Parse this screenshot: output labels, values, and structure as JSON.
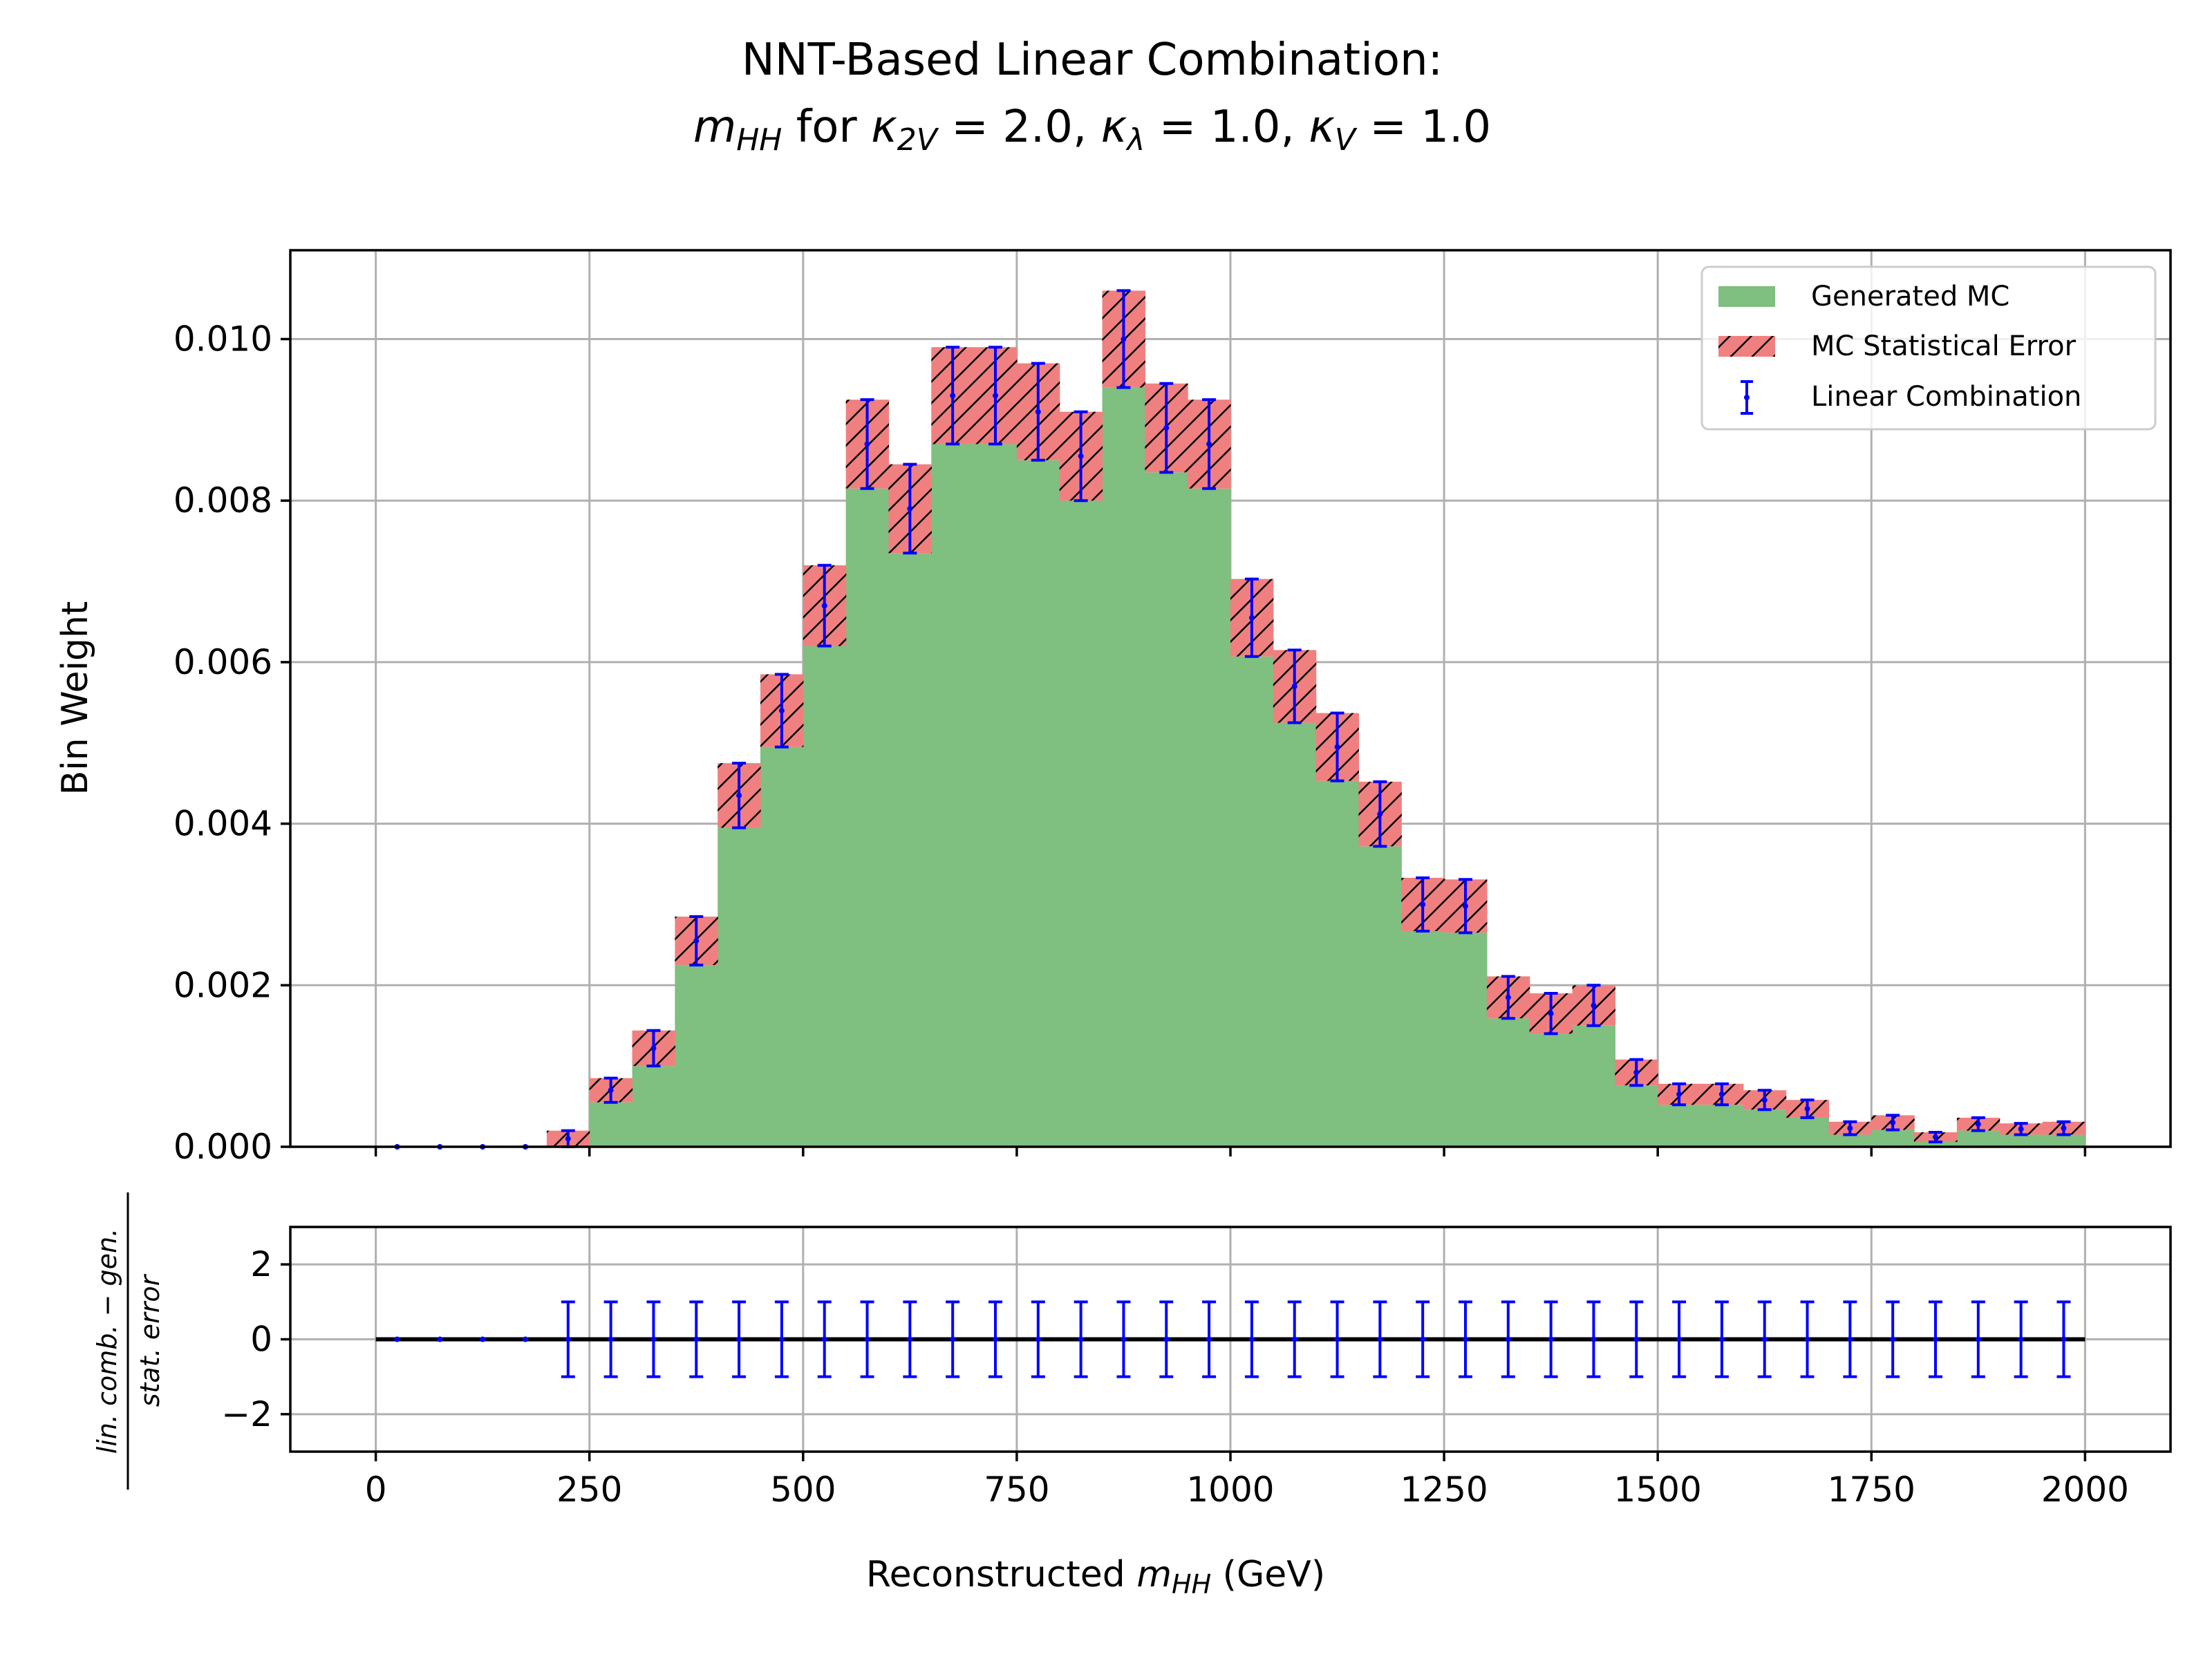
{
  "title_line1": "NNT-Based Linear Combination:",
  "title_line2": {
    "mhh": "m",
    "mhh_sub": "HH",
    "for": " for ",
    "k2v": "κ",
    "k2v_sub": "2V",
    "k2v_val": " = 2.0, ",
    "kl": "κ",
    "kl_sub": "λ",
    "kl_val": " = 1.0, ",
    "kv": "κ",
    "kv_sub": "V",
    "kv_val": " = 1.0"
  },
  "legend": {
    "generated": "Generated MC",
    "stat_error": "MC Statistical Error",
    "lin_comb": "Linear Combination"
  },
  "top_ylabel": "Bin Weight",
  "bottom_ylabel": {
    "numerator": "lin. comb. − gen.",
    "denominator": "stat. error"
  },
  "xlabel": {
    "prefix": "Reconstructed ",
    "var": "m",
    "sub": "HH",
    "suffix": " (GeV)"
  },
  "colors": {
    "generated_fill": "#7fbf7f",
    "error_fill": "#f08080",
    "errorbar": "#0000ff"
  },
  "chart_data": [
    {
      "type": "histogram",
      "panel": "main",
      "ylabel": "Bin Weight",
      "xlim": [
        -100,
        2100
      ],
      "ylim": [
        0,
        0.0111
      ],
      "xticks": [
        0,
        250,
        500,
        750,
        1000,
        1250,
        1500,
        1750,
        2000
      ],
      "yticks": [
        0.0,
        0.002,
        0.004,
        0.006,
        0.008,
        0.01
      ],
      "ytick_labels": [
        "0.000",
        "0.002",
        "0.004",
        "0.006",
        "0.008",
        "0.010"
      ],
      "grid": true,
      "legend_position": "top-right",
      "bin_edges": [
        0,
        50,
        100,
        150,
        200,
        250,
        300,
        350,
        400,
        450,
        500,
        550,
        600,
        650,
        700,
        750,
        800,
        850,
        900,
        950,
        1000,
        1050,
        1100,
        1150,
        1200,
        1250,
        1300,
        1350,
        1400,
        1450,
        1500,
        1550,
        1600,
        1650,
        1700,
        1750,
        1800,
        1850,
        1900,
        1950,
        2000
      ],
      "series": [
        {
          "name": "Generated MC",
          "values": [
            0,
            0,
            0,
            0,
            0.0001,
            0.0007,
            0.00122,
            0.00255,
            0.00435,
            0.0054,
            0.0067,
            0.0087,
            0.0079,
            0.0093,
            0.0093,
            0.0091,
            0.00855,
            0.01,
            0.0089,
            0.0087,
            0.00655,
            0.0057,
            0.00495,
            0.00412,
            0.003,
            0.00298,
            0.00185,
            0.00165,
            0.00175,
            0.00092,
            0.00065,
            0.00065,
            0.00058,
            0.00047,
            0.00023,
            0.0003,
            0.00012,
            0.00028,
            0.00022,
            0.00023
          ]
        },
        {
          "name": "MC Statistical Error",
          "values": [
            0,
            0,
            0,
            0,
            0.0001,
            0.00015,
            0.00022,
            0.0003,
            0.0004,
            0.00045,
            0.0005,
            0.00055,
            0.00055,
            0.0006,
            0.0006,
            0.0006,
            0.00055,
            0.0006,
            0.00055,
            0.00055,
            0.00048,
            0.00045,
            0.00042,
            0.0004,
            0.00033,
            0.00033,
            0.00026,
            0.00025,
            0.00025,
            0.00016,
            0.00013,
            0.00013,
            0.00012,
            0.00011,
            8e-05,
            9e-05,
            6e-05,
            8e-05,
            7e-05,
            8e-05
          ]
        },
        {
          "name": "Linear Combination",
          "values": [
            0,
            0,
            0,
            0,
            0.0001,
            0.0007,
            0.00122,
            0.00255,
            0.00435,
            0.0054,
            0.0067,
            0.0087,
            0.0079,
            0.0093,
            0.0093,
            0.0091,
            0.00855,
            0.01,
            0.0089,
            0.0087,
            0.00655,
            0.0057,
            0.00495,
            0.00412,
            0.003,
            0.00298,
            0.00185,
            0.00165,
            0.00175,
            0.00092,
            0.00065,
            0.00065,
            0.00058,
            0.00047,
            0.00023,
            0.0003,
            0.00012,
            0.00028,
            0.00022,
            0.00023
          ]
        }
      ]
    },
    {
      "type": "scatter",
      "panel": "ratio",
      "xlabel": "Reconstructed m_HH (GeV)",
      "xlim": [
        -100,
        2100
      ],
      "ylim": [
        -3,
        3
      ],
      "xticks": [
        0,
        250,
        500,
        750,
        1000,
        1250,
        1500,
        1750,
        2000
      ],
      "yticks": [
        -2,
        0,
        2
      ],
      "ytick_labels": [
        "−2",
        "0",
        "2"
      ],
      "grid": true,
      "x": [
        25,
        75,
        125,
        175,
        225,
        275,
        325,
        375,
        425,
        475,
        525,
        575,
        625,
        675,
        725,
        775,
        825,
        875,
        925,
        975,
        1025,
        1075,
        1125,
        1175,
        1225,
        1275,
        1325,
        1375,
        1425,
        1475,
        1525,
        1575,
        1625,
        1675,
        1725,
        1775,
        1825,
        1875,
        1925,
        1975
      ],
      "values": [
        0,
        0,
        0,
        0,
        0,
        0,
        0,
        0,
        0,
        0,
        0,
        0,
        0,
        0,
        0,
        0,
        0,
        0,
        0,
        0,
        0,
        0,
        0,
        0,
        0,
        0,
        0,
        0,
        0,
        0,
        0,
        0,
        0,
        0,
        0,
        0,
        0,
        0,
        0,
        0
      ],
      "errors": [
        0,
        0,
        0,
        0,
        1,
        1,
        1,
        1,
        1,
        1,
        1,
        1,
        1,
        1,
        1,
        1,
        1,
        1,
        1,
        1,
        1,
        1,
        1,
        1,
        1,
        1,
        1,
        1,
        1,
        1,
        1,
        1,
        1,
        1,
        1,
        1,
        1,
        1,
        1,
        1
      ],
      "reference_line": 0
    }
  ]
}
